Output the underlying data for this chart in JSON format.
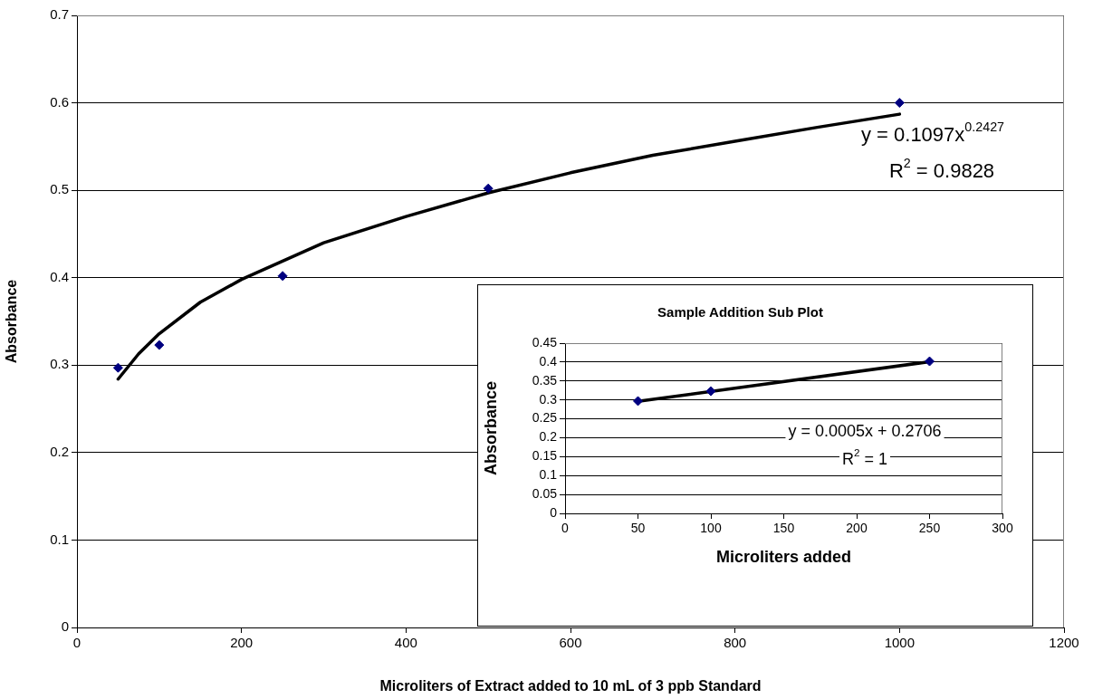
{
  "chart_data": [
    {
      "type": "scatter",
      "xlabel": "Microliters of Extract added to 10 mL of 3 ppb Standard",
      "ylabel": "Absorbance",
      "xlim": [
        0,
        1200
      ],
      "xticks": [
        0,
        200,
        400,
        600,
        800,
        1000,
        1200
      ],
      "ylim": [
        0,
        0.7
      ],
      "yticks": [
        0,
        0.1,
        0.2,
        0.3,
        0.4,
        0.5,
        0.6,
        0.7
      ],
      "grid": "y",
      "legend": false,
      "series": [
        {
          "color": "#000080",
          "marker": "diamond",
          "x": [
            50,
            100,
            250,
            500,
            1000
          ],
          "values": [
            0.297,
            0.323,
            0.402,
            0.502,
            0.6
          ]
        },
        {
          "type": "line",
          "color": "#000000",
          "marker": "none",
          "x": [
            50,
            75,
            100,
            150,
            200,
            300,
            400,
            500,
            600,
            700,
            800,
            900,
            1000
          ],
          "values": [
            0.284,
            0.313,
            0.336,
            0.372,
            0.398,
            0.44,
            0.47,
            0.497,
            0.52,
            0.54,
            0.556,
            0.572,
            0.587
          ]
        }
      ],
      "annotations": [
        "y = 0.1097x$^{0.2427}$",
        "R$^{2}$ = 0.9828"
      ]
    },
    {
      "type": "scatter",
      "title": "Sample Addition Sub Plot",
      "xlabel": "Microliters added",
      "ylabel": "Absorbance",
      "xlim": [
        0,
        300
      ],
      "xticks": [
        0,
        50,
        100,
        150,
        200,
        250,
        300
      ],
      "ylim": [
        0,
        0.45
      ],
      "yticks": [
        0,
        0.05,
        0.1,
        0.15,
        0.2,
        0.25,
        0.3,
        0.35,
        0.4,
        0.45
      ],
      "grid": "y",
      "legend": false,
      "series": [
        {
          "color": "#000080",
          "marker": "diamond",
          "x": [
            50,
            100,
            250
          ],
          "values": [
            0.297,
            0.323,
            0.402
          ]
        },
        {
          "type": "line",
          "color": "#000000",
          "marker": "none",
          "x": [
            50,
            250
          ],
          "values": [
            0.296,
            0.401
          ]
        }
      ],
      "annotations": [
        "y = 0.0005x + 0.2706",
        "R$^{2}$ = 1"
      ]
    }
  ]
}
